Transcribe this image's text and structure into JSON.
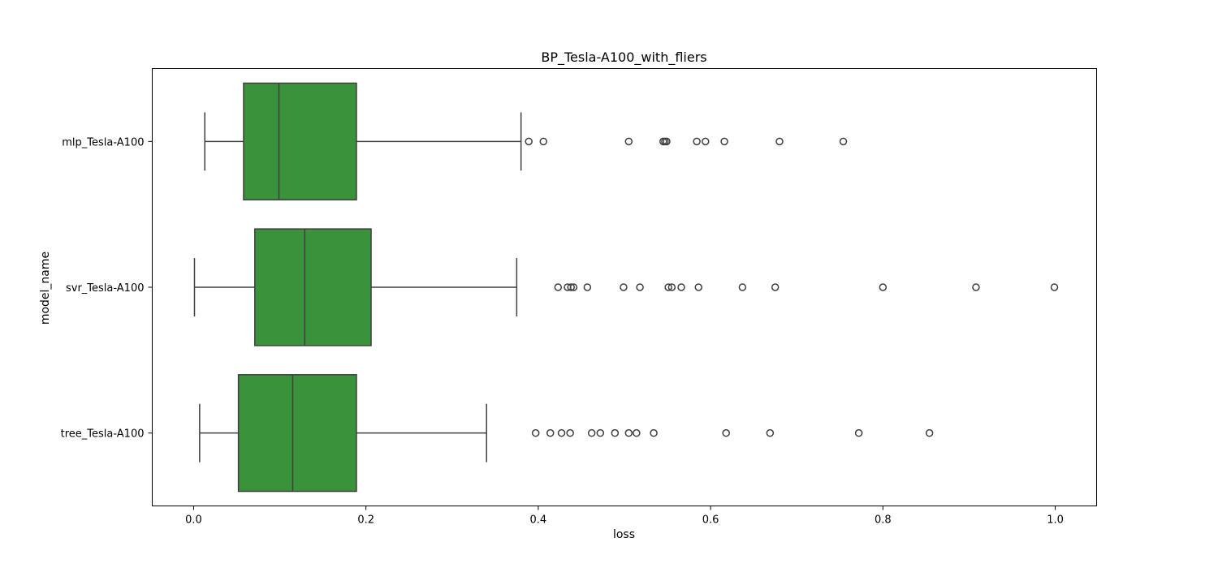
{
  "chart_data": {
    "type": "boxplot",
    "orientation": "horizontal",
    "title": "BP_Tesla-A100_with_fliers",
    "xlabel": "loss",
    "ylabel": "model_name",
    "xlim": [
      -0.048,
      1.048
    ],
    "xticks": [
      0.0,
      0.2,
      0.4,
      0.6,
      0.8,
      1.0
    ],
    "xtick_labels": [
      "0.0",
      "0.2",
      "0.4",
      "0.6",
      "0.8",
      "1.0"
    ],
    "grid": false,
    "box_color": "#3a923a",
    "line_color": "#3f3f3f",
    "categories": [
      "mlp_Tesla-A100",
      "svr_Tesla-A100",
      "tree_Tesla-A100"
    ],
    "boxes": [
      {
        "name": "mlp_Tesla-A100",
        "whisker_low": 0.013,
        "q1": 0.058,
        "median": 0.099,
        "q3": 0.189,
        "whisker_high": 0.38,
        "fliers": [
          0.389,
          0.406,
          0.505,
          0.545,
          0.547,
          0.549,
          0.584,
          0.594,
          0.616,
          0.68,
          0.754
        ]
      },
      {
        "name": "svr_Tesla-A100",
        "whisker_low": 0.001,
        "q1": 0.071,
        "median": 0.129,
        "q3": 0.206,
        "whisker_high": 0.375,
        "fliers": [
          0.423,
          0.434,
          0.438,
          0.441,
          0.457,
          0.499,
          0.518,
          0.551,
          0.555,
          0.566,
          0.586,
          0.637,
          0.675,
          0.8,
          0.908,
          0.999
        ]
      },
      {
        "name": "tree_Tesla-A100",
        "whisker_low": 0.007,
        "q1": 0.052,
        "median": 0.115,
        "q3": 0.189,
        "whisker_high": 0.34,
        "fliers": [
          0.397,
          0.414,
          0.427,
          0.437,
          0.462,
          0.472,
          0.489,
          0.505,
          0.514,
          0.534,
          0.618,
          0.669,
          0.772,
          0.854
        ]
      }
    ]
  }
}
